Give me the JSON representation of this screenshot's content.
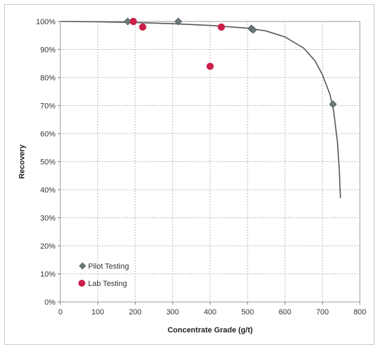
{
  "chart_data": {
    "type": "scatter",
    "title": "",
    "xlabel": "Concentrate Grade (g/t)",
    "ylabel": "Recovery",
    "xlim": [
      0,
      800
    ],
    "ylim": [
      0,
      100
    ],
    "x_ticks": [
      0,
      100,
      200,
      300,
      400,
      500,
      600,
      700,
      800
    ],
    "x_tick_labels": [
      "0",
      "100",
      "200",
      "300",
      "400",
      "500",
      "600",
      "700",
      "800"
    ],
    "y_ticks": [
      0,
      10,
      20,
      30,
      40,
      50,
      60,
      70,
      80,
      90,
      100
    ],
    "y_tick_labels": [
      "0%",
      "10%",
      "20%",
      "30%",
      "40%",
      "50%",
      "60%",
      "70%",
      "80%",
      "90%",
      "100%"
    ],
    "grid": true,
    "legend_position": "bottom-left",
    "series": [
      {
        "name": "Pilot Testing",
        "marker": "diamond",
        "color": "#6d7a7c",
        "x": [
          180,
          315,
          510,
          515,
          728
        ],
        "y": [
          100,
          100,
          97.5,
          97,
          70.5
        ]
      },
      {
        "name": "Lab Testing",
        "marker": "circle",
        "color": "#cc1f4a",
        "x": [
          195,
          220,
          400,
          430
        ],
        "y": [
          100,
          98,
          84,
          98
        ]
      }
    ],
    "trendline": {
      "color": "#555555",
      "x": [
        0,
        100,
        200,
        300,
        400,
        500,
        550,
        600,
        650,
        680,
        700,
        720,
        730,
        740,
        745,
        748
      ],
      "y": [
        100,
        99.9,
        99.6,
        99.2,
        98.6,
        97.6,
        96.6,
        94.5,
        90.5,
        86,
        81,
        74,
        68,
        57,
        47,
        37
      ]
    }
  }
}
